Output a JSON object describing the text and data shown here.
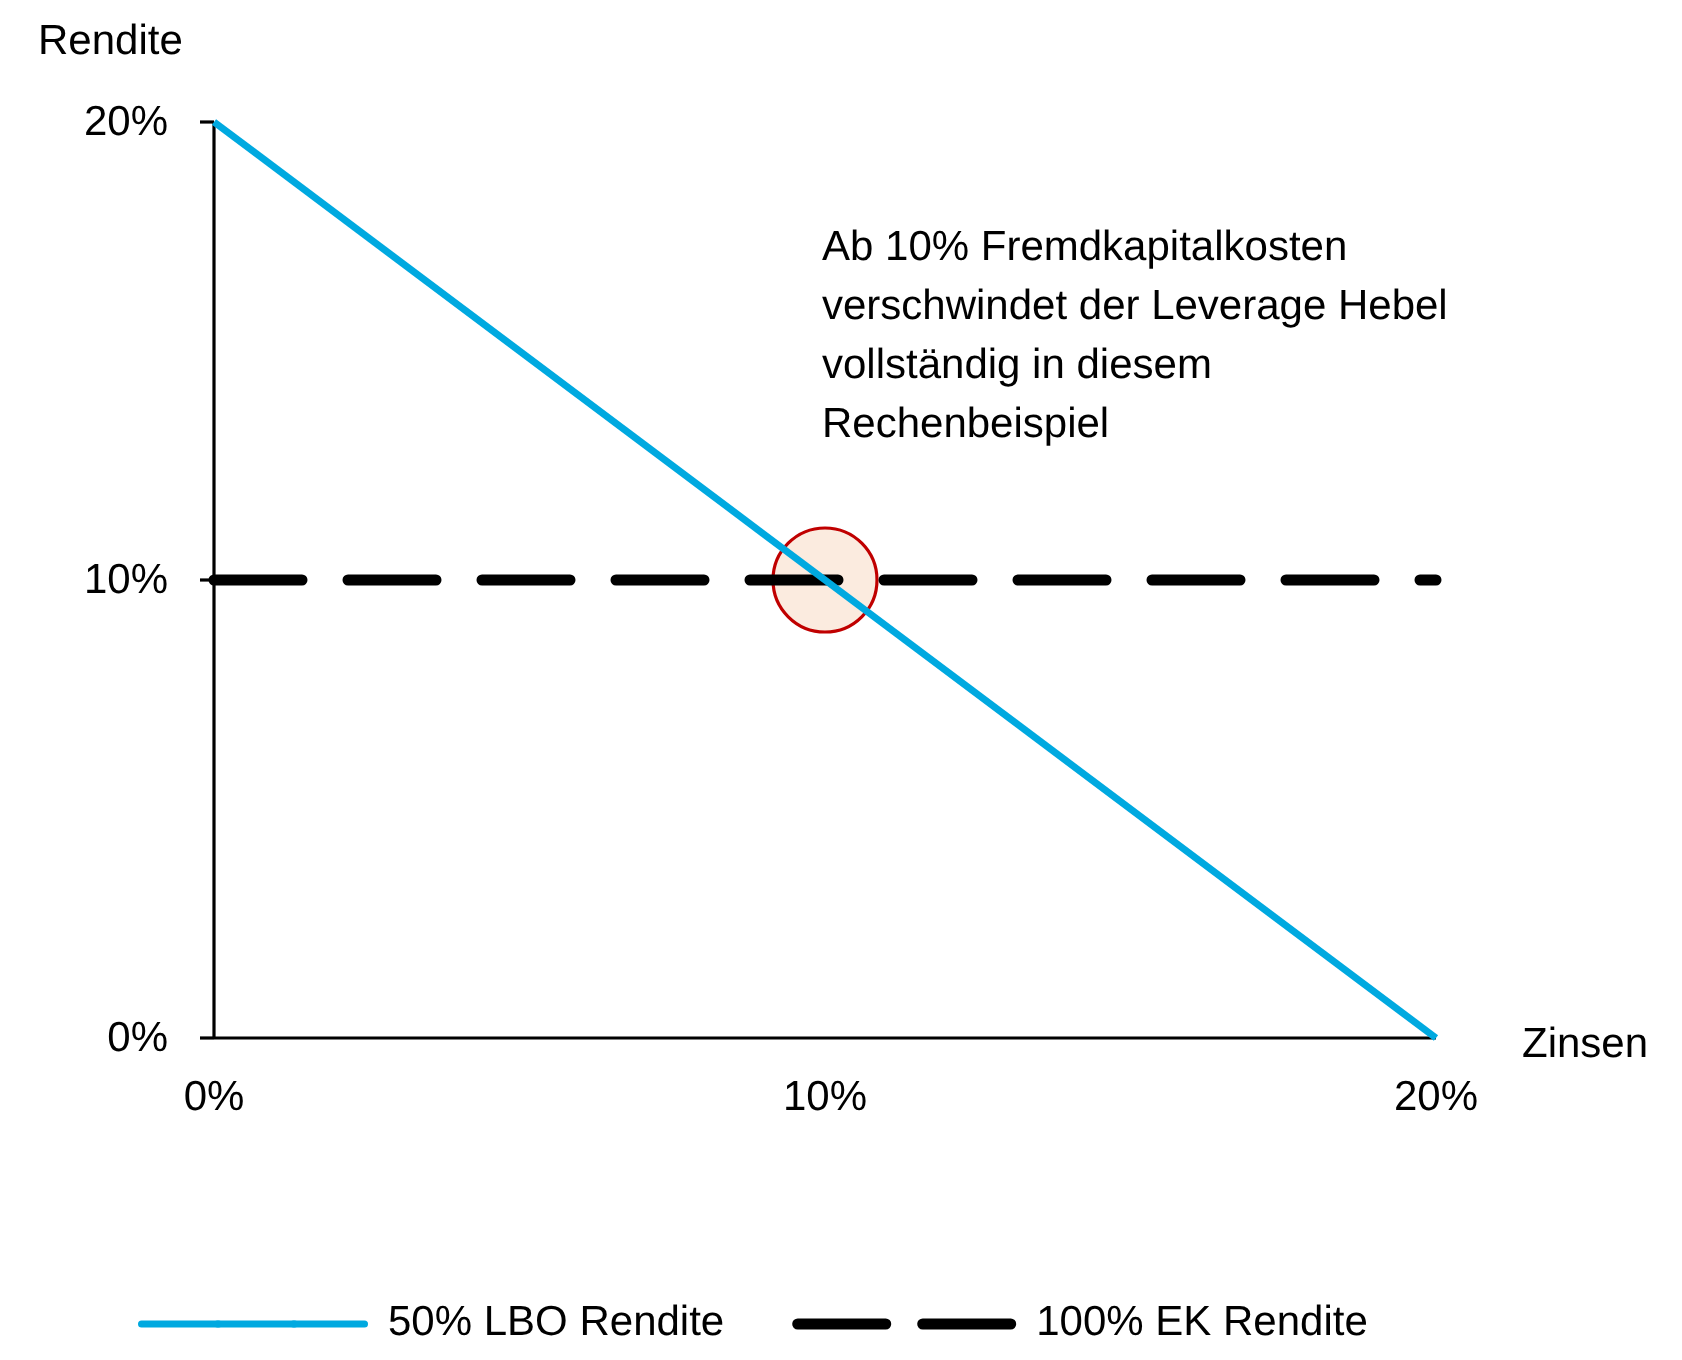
{
  "chart_data": {
    "type": "line",
    "xlabel": "Zinsen",
    "ylabel": "Rendite",
    "x": [
      0,
      10,
      20
    ],
    "series": [
      {
        "name": "50% LBO Rendite",
        "color": "#00a9e0",
        "values": [
          20,
          10,
          0
        ],
        "line_style": "solid"
      },
      {
        "name": "100% EK Rendite",
        "color": "#000000",
        "values": [
          10,
          10,
          10
        ],
        "line_style": "dashed"
      },
      {
        "type": "scatter",
        "x": [
          10
        ],
        "color": "#fbebdf",
        "values": [
          10
        ],
        "marker": "circle"
      }
    ],
    "xlim": [
      0,
      20
    ],
    "ylim": [
      0,
      20
    ],
    "xticks": [
      {
        "value": 0,
        "label": "0%"
      },
      {
        "value": 10,
        "label": "10%"
      },
      {
        "value": 20,
        "label": "20%"
      }
    ],
    "yticks": [
      {
        "value": 0,
        "label": "0%"
      },
      {
        "value": 10,
        "label": "10%"
      },
      {
        "value": 20,
        "label": "20%"
      }
    ],
    "annotations": [
      "Ab 10% Fremdkapitalkosten\nverschwindet der Leverage Hebel\nvollständig in diesem\nRechenbeispiel"
    ],
    "legend": "bottom",
    "grid": false,
    "marker": "none"
  }
}
